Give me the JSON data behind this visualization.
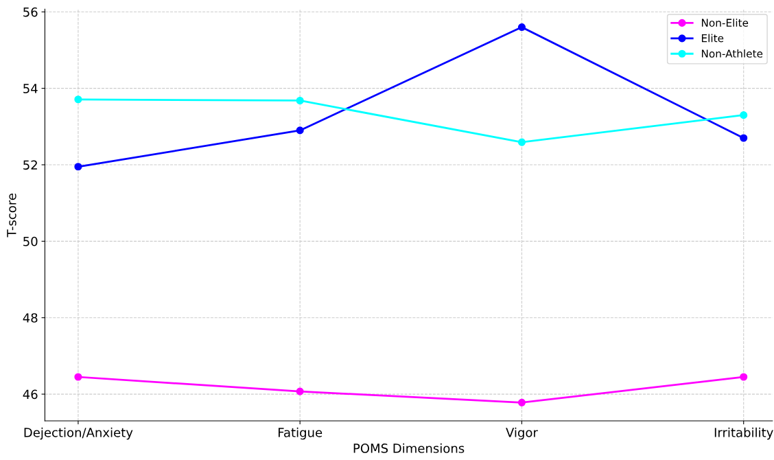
{
  "chart_data": {
    "type": "line",
    "xlabel": "POMS Dimensions",
    "ylabel": "T-score",
    "categories": [
      "Dejection/Anxiety",
      "Fatigue",
      "Vigor",
      "Irritability"
    ],
    "series": [
      {
        "name": "Non-Elite",
        "color": "#ff00ff",
        "values": [
          46.45,
          46.07,
          45.78,
          46.45
        ]
      },
      {
        "name": "Elite",
        "color": "#0000ff",
        "values": [
          51.95,
          52.9,
          55.6,
          52.7
        ]
      },
      {
        "name": "Non-Athlete",
        "color": "#00ffff",
        "values": [
          53.71,
          53.68,
          52.59,
          53.3
        ]
      }
    ],
    "ylim": [
      45.3,
      56.07
    ],
    "yticks": [
      46,
      48,
      50,
      52,
      54,
      56
    ],
    "grid": true,
    "legend": "top right",
    "marker": "circle",
    "line_style": "solid"
  }
}
